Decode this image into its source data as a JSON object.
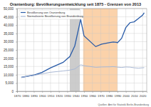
{
  "chart_data": {
    "type": "line",
    "title": "Oranienburg: Bevölkerungsentwicklung seit 1875 - Grenzen von 2013",
    "x": [
      1875,
      1890,
      1900,
      1910,
      1925,
      1933,
      1939,
      1946,
      1950,
      1964,
      1971,
      1981,
      1985,
      1989,
      1990,
      1995,
      2000,
      2005,
      2010,
      2015,
      2020,
      2022
    ],
    "series": [
      {
        "name": "Bevölkerung von Oranienburg",
        "color": "#2a5ca8",
        "values": [
          8400,
          9800,
          11500,
          14200,
          17500,
          21000,
          27500,
          43500,
          33500,
          27000,
          28500,
          29500,
          29800,
          29600,
          29300,
          32000,
          38500,
          41500,
          42000,
          44000,
          46000,
          47500
        ]
      },
      {
        "name": "Normalisierte Bevölkerung von Brandenburg",
        "color": "#a9b8d4",
        "values": [
          8400,
          9600,
          10600,
          11500,
          12300,
          12800,
          13500,
          16000,
          15500,
          14500,
          14700,
          14800,
          14900,
          14700,
          14600,
          14400,
          14700,
          14600,
          14200,
          14000,
          14200,
          14300
        ]
      }
    ],
    "bands": [
      {
        "start": 1933,
        "end": 1945,
        "color": "#cccccc"
      },
      {
        "start": 1949,
        "end": 1990,
        "color": "#fbd2aa"
      }
    ],
    "xlim": [
      1870,
      2025
    ],
    "xticks": [
      1870,
      1880,
      1890,
      1900,
      1910,
      1920,
      1930,
      1940,
      1950,
      1960,
      1970,
      1980,
      1990,
      2000,
      2010,
      2020
    ],
    "ylim": [
      0,
      50000
    ],
    "yticks": [
      0,
      {
        "value": 5000,
        "label": "5,000"
      },
      {
        "value": 10000,
        "label": "10,000"
      },
      {
        "value": 15000,
        "label": "15,000"
      },
      {
        "value": 20000,
        "label": "20,000"
      },
      {
        "value": 25000,
        "label": "25,000"
      },
      {
        "value": 30000,
        "label": "30,000"
      },
      {
        "value": 35000,
        "label": "35,000"
      },
      {
        "value": 40000,
        "label": "40,000"
      },
      {
        "value": 45000,
        "label": "45,000"
      },
      {
        "value": 50000,
        "label": "50,000"
      }
    ],
    "grid": true,
    "legend": "upper-left",
    "source": "Quellen: Amt für Statistik Berlin-Brandenburg"
  }
}
